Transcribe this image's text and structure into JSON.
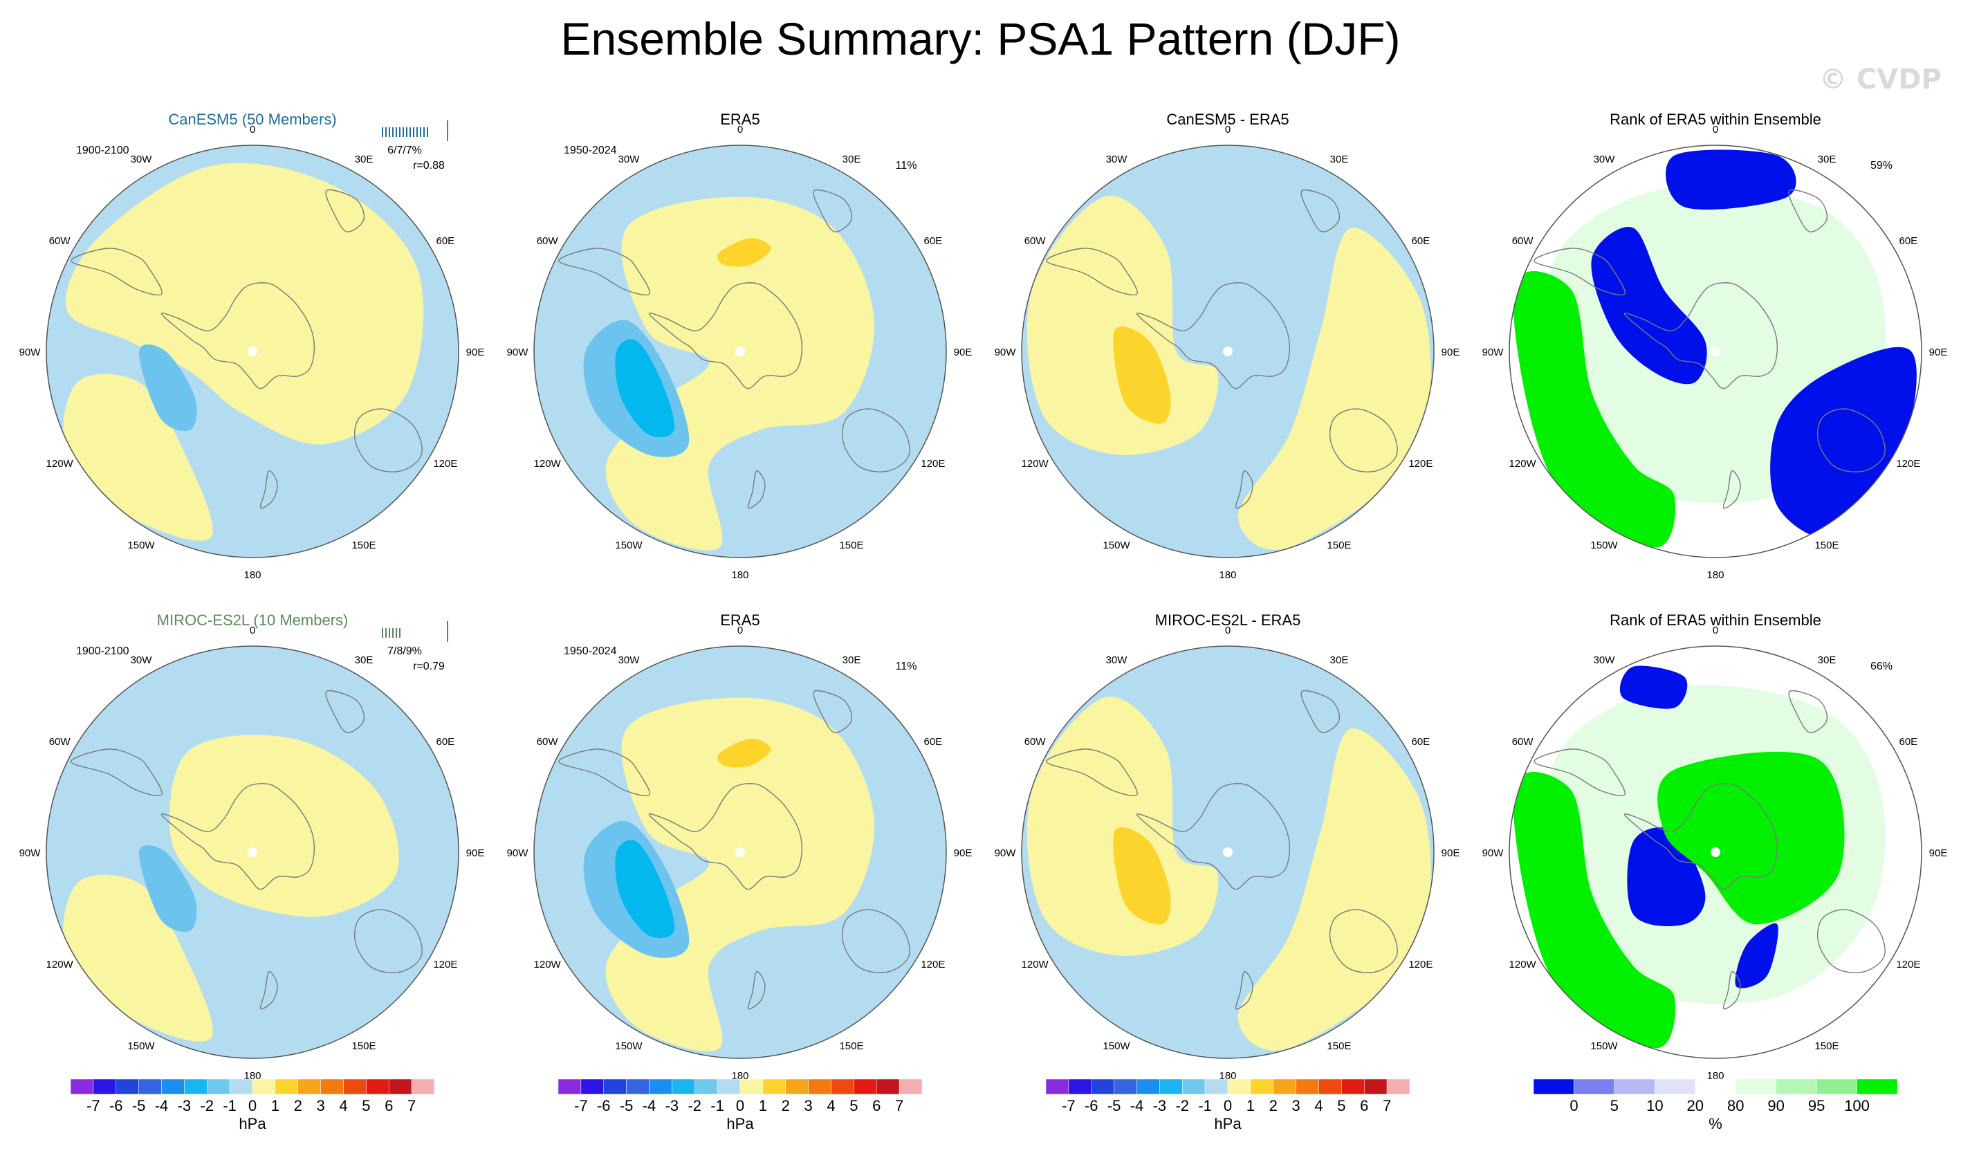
{
  "title": "Ensemble Summary: PSA1 Pattern (DJF)",
  "watermark": "© CVDP",
  "colors": {
    "pos_light": "#faf5a0",
    "pos_mid": "#fdd42c",
    "neg_light": "#b4dcf1",
    "neg_mid": "#6cc4ee",
    "neg_deep": "#03b8ee",
    "blue_strong": "#0010ea",
    "blue_mid": "#8088f0",
    "blue_pale": "#e0e2fa",
    "green_strong": "#00f000",
    "green_mid": "#90f090",
    "green_pale": "#e2fde2",
    "land_outline": "#7a7a7a",
    "model1_label": "#1e6e9a",
    "model2_label": "#5a8a5a"
  },
  "longitude_labels": [
    "0",
    "30E",
    "60E",
    "90E",
    "120E",
    "150E",
    "180",
    "150W",
    "120W",
    "90W",
    "60W",
    "30W"
  ],
  "rows": [
    {
      "model": "CanESM5 (50 Members)",
      "model_period": "1900-2100",
      "model_stats": "6/7/7%",
      "model_corr": "r=0.88",
      "obs_title": "ERA5",
      "obs_period": "1950-2024",
      "obs_pct": "11%",
      "diff_title": "CanESM5 - ERA5",
      "rank_title": "Rank of ERA5 within Ensemble",
      "rank_pct": "59%"
    },
    {
      "model": "MIROC-ES2L (10 Members)",
      "model_period": "1900-2100",
      "model_stats": "7/8/9%",
      "model_corr": "r=0.79",
      "obs_title": "ERA5",
      "obs_period": "1950-2024",
      "obs_pct": "11%",
      "diff_title": "MIROC-ES2L - ERA5",
      "rank_title": "Rank of ERA5 within Ensemble",
      "rank_pct": "66%"
    }
  ],
  "colorbar_hpa": {
    "labels": [
      "-7",
      "-6",
      "-5",
      "-4",
      "-3",
      "-2",
      "-1",
      "0",
      "1",
      "2",
      "3",
      "4",
      "5",
      "6",
      "7"
    ],
    "colors": [
      "#8a2be2",
      "#2a14e6",
      "#2244dd",
      "#3366e0",
      "#1c8ef0",
      "#1ab4f2",
      "#70c8ee",
      "#b4dcf1",
      "#faf5a0",
      "#fdd42c",
      "#f7a51c",
      "#f27a10",
      "#ee4a10",
      "#e41a14",
      "#c2151c",
      "#f5aeb0"
    ],
    "unit": "hPa"
  },
  "colorbar_rank": {
    "labels": [
      "0",
      "5",
      "10",
      "20",
      "80",
      "90",
      "95",
      "100"
    ],
    "colors": [
      "#0010ea",
      "#7a80f0",
      "#b4b8f5",
      "#e0e2fa",
      "#ffffff",
      "#e2fde2",
      "#b4f7b4",
      "#90f090",
      "#00f000"
    ],
    "unit": "%"
  }
}
